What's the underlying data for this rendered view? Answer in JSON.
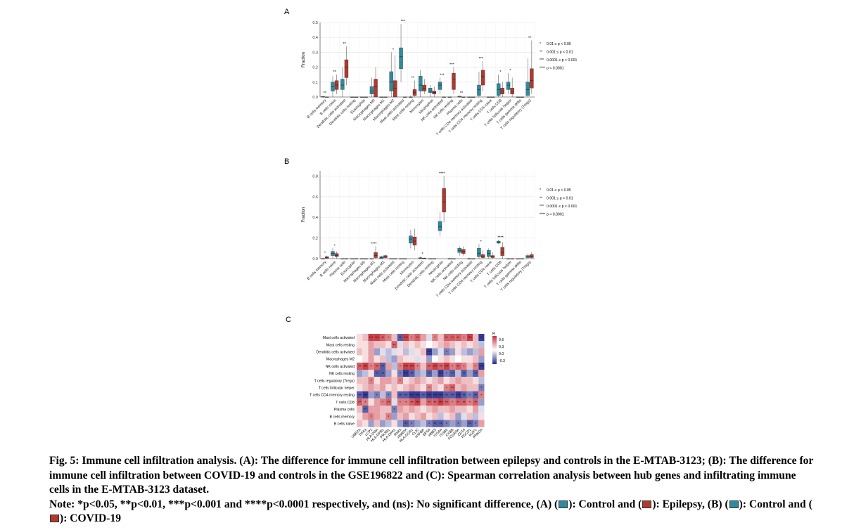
{
  "colors": {
    "control": "#2e8b9e",
    "disease": "#b03a2e",
    "heat_high": "#c8303a",
    "heat_low": "#262c8c"
  },
  "sig_legend": [
    "0.01 ≤ p < 0.05",
    "0.001 ≤ p < 0.01",
    "0.0001 ≤ p < 0.001",
    "p < 0.0001"
  ],
  "chart_data": [
    {
      "panel": "A",
      "type": "box",
      "ylabel": "Fraction",
      "ylim": [
        0,
        0.5
      ],
      "yticks": [
        "0.0",
        "0.1",
        "0.2",
        "0.3",
        "0.4",
        "0.5"
      ],
      "categories": [
        "B cells memory",
        "B cells naive",
        "Dendritic cells activated",
        "Dendritic cells resting",
        "Eosinophils",
        "Macrophages M0",
        "Macrophages M1",
        "Macrophages M2",
        "Mast cells activated",
        "Mast cells resting",
        "Monocytes",
        "Neutrophils",
        "NK cells activated",
        "NK cells resting",
        "Plasma cells",
        "T cells CD4 memory activated",
        "T cells CD4 memory resting",
        "T cells CD4 naive",
        "T cells CD8",
        "T cells follicular helper",
        "T cells gamma delta",
        "T cells regulatory (Tregs)"
      ],
      "significance": [
        "**",
        "**",
        "**",
        "",
        "",
        "",
        "",
        "*",
        "***",
        "**",
        "",
        "",
        "***",
        "***",
        "**",
        "",
        "***",
        "",
        "*",
        "*",
        "",
        "**"
      ],
      "series": [
        {
          "name": "Control",
          "boxes": [
            [
              0,
              0,
              0,
              0.003,
              0.01
            ],
            [
              0,
              0.04,
              0.07,
              0.1,
              0.14
            ],
            [
              0,
              0.05,
              0.08,
              0.12,
              0.2
            ],
            [
              0,
              0,
              0,
              0,
              0
            ],
            [
              0,
              0,
              0,
              0,
              0
            ],
            [
              0,
              0.02,
              0.04,
              0.07,
              0.13
            ],
            [
              0,
              0,
              0,
              0,
              0
            ],
            [
              0,
              0.04,
              0.1,
              0.17,
              0.3
            ],
            [
              0.1,
              0.19,
              0.27,
              0.33,
              0.49
            ],
            [
              0,
              0,
              0,
              0,
              0.01
            ],
            [
              0,
              0.04,
              0.08,
              0.14,
              0.18
            ],
            [
              0,
              0.03,
              0.04,
              0.06,
              0.08
            ],
            [
              0.02,
              0.05,
              0.08,
              0.1,
              0.13
            ],
            [
              0,
              0,
              0,
              0,
              0
            ],
            [
              0,
              0,
              0,
              0.005,
              0.01
            ],
            [
              0,
              0,
              0,
              0,
              0
            ],
            [
              0,
              0.01,
              0.05,
              0.08,
              0.17
            ],
            [
              0,
              0,
              0,
              0,
              0
            ],
            [
              0,
              0.01,
              0.05,
              0.09,
              0.15
            ],
            [
              0.02,
              0.05,
              0.08,
              0.1,
              0.16
            ],
            [
              0,
              0,
              0,
              0,
              0
            ],
            [
              0,
              0.01,
              0.05,
              0.1,
              0.26
            ]
          ]
        },
        {
          "name": "Epilepsy",
          "boxes": [
            [
              0,
              0,
              0,
              0,
              0
            ],
            [
              0.02,
              0.05,
              0.08,
              0.11,
              0.15
            ],
            [
              0.08,
              0.13,
              0.2,
              0.25,
              0.34
            ],
            [
              0,
              0,
              0,
              0,
              0
            ],
            [
              0,
              0,
              0,
              0,
              0
            ],
            [
              0,
              0,
              0.07,
              0.12,
              0.2
            ],
            [
              0,
              0,
              0,
              0,
              0
            ],
            [
              0,
              0,
              0.06,
              0.11,
              0.28
            ],
            [
              0,
              0,
              0,
              0,
              0
            ],
            [
              0,
              0.01,
              0.03,
              0.05,
              0.11
            ],
            [
              0.02,
              0.04,
              0.06,
              0.08,
              0.12
            ],
            [
              0,
              0.02,
              0.03,
              0.04,
              0.07
            ],
            [
              0,
              0,
              0,
              0,
              0
            ],
            [
              0.02,
              0.05,
              0.12,
              0.16,
              0.2
            ],
            [
              0,
              0,
              0,
              0,
              0
            ],
            [
              0,
              0,
              0,
              0,
              0
            ],
            [
              0.04,
              0.08,
              0.14,
              0.18,
              0.24
            ],
            [
              0,
              0,
              0,
              0,
              0
            ],
            [
              0,
              0.02,
              0.04,
              0.06,
              0.1
            ],
            [
              0,
              0.02,
              0.04,
              0.06,
              0.13
            ],
            [
              0,
              0,
              0,
              0,
              0
            ],
            [
              0.02,
              0.06,
              0.11,
              0.19,
              0.38
            ]
          ]
        }
      ]
    },
    {
      "panel": "B",
      "type": "box",
      "ylabel": "Fraction",
      "ylim": [
        0,
        0.85
      ],
      "yticks": [
        "0.0",
        "0.2",
        "0.4",
        "0.6",
        "0.8"
      ],
      "categories": [
        "B cells memory",
        "B cells naive",
        "Plasma cells",
        "Eosinophils",
        "Macrophages M0",
        "Macrophages M1",
        "Macrophages M2",
        "Mast cells activated",
        "Mast cells resting",
        "Monocytes",
        "Dendritic cells activated",
        "Dendritic cells resting",
        "Neutrophils",
        "NK cells activated",
        "NK cells resting",
        "T cells CD4 memory activated",
        "T cells CD4 memory resting",
        "T cells CD4 naive",
        "T cells CD8",
        "T cells follicular helper",
        "T cells gamma delta",
        "T cells regulatory (Tregs)"
      ],
      "significance": [
        "*",
        "*",
        "",
        "",
        "",
        "****",
        "",
        "",
        "",
        "",
        "*",
        "",
        "****",
        "",
        "",
        "",
        "*",
        "",
        "****",
        "",
        "",
        ""
      ],
      "series": [
        {
          "name": "Control",
          "boxes": [
            [
              0,
              0,
              0,
              0,
              0.01
            ],
            [
              0,
              0.03,
              0.05,
              0.07,
              0.1
            ],
            [
              0,
              0,
              0,
              0,
              0
            ],
            [
              0,
              0,
              0,
              0,
              0
            ],
            [
              0,
              0,
              0,
              0,
              0
            ],
            [
              0,
              0,
              0,
              0,
              0
            ],
            [
              0,
              0,
              0.01,
              0.02,
              0.03
            ],
            [
              0,
              0,
              0,
              0,
              0
            ],
            [
              0,
              0,
              0,
              0,
              0
            ],
            [
              0.1,
              0.15,
              0.19,
              0.22,
              0.28
            ],
            [
              0,
              0,
              0,
              0.01,
              0.02
            ],
            [
              0,
              0,
              0,
              0,
              0
            ],
            [
              0.22,
              0.27,
              0.31,
              0.36,
              0.45
            ],
            [
              0,
              0,
              0,
              0,
              0.01
            ],
            [
              0.03,
              0.06,
              0.08,
              0.1,
              0.12
            ],
            [
              0,
              0,
              0,
              0,
              0.01
            ],
            [
              0,
              0.02,
              0.05,
              0.1,
              0.14
            ],
            [
              0,
              0.02,
              0.05,
              0.08,
              0.1
            ],
            [
              0.14,
              0.15,
              0.16,
              0.17,
              0.18
            ],
            [
              0,
              0,
              0,
              0,
              0
            ],
            [
              0,
              0,
              0,
              0,
              0
            ],
            [
              0,
              0.01,
              0.02,
              0.03,
              0.05
            ]
          ]
        },
        {
          "name": "COVID-19",
          "boxes": [
            [
              0,
              0.005,
              0.01,
              0.02,
              0.03
            ],
            [
              0,
              0.02,
              0.03,
              0.05,
              0.07
            ],
            [
              0,
              0,
              0,
              0,
              0
            ],
            [
              0,
              0,
              0,
              0,
              0
            ],
            [
              0,
              0,
              0,
              0,
              0
            ],
            [
              0,
              0.01,
              0.03,
              0.06,
              0.12
            ],
            [
              0,
              0.01,
              0.02,
              0.03,
              0.04
            ],
            [
              0,
              0,
              0,
              0,
              0
            ],
            [
              0,
              0,
              0,
              0,
              0
            ],
            [
              0.08,
              0.13,
              0.17,
              0.21,
              0.29
            ],
            [
              0,
              0,
              0,
              0.005,
              0.01
            ],
            [
              0,
              0,
              0,
              0,
              0
            ],
            [
              0.35,
              0.45,
              0.55,
              0.68,
              0.8
            ],
            [
              0,
              0,
              0,
              0,
              0
            ],
            [
              0.03,
              0.05,
              0.07,
              0.09,
              0.12
            ],
            [
              0,
              0,
              0,
              0,
              0
            ],
            [
              0,
              0.01,
              0.02,
              0.04,
              0.08
            ],
            [
              0,
              0.01,
              0.02,
              0.03,
              0.06
            ],
            [
              0,
              0.03,
              0.06,
              0.11,
              0.16
            ],
            [
              0,
              0,
              0,
              0,
              0
            ],
            [
              0,
              0,
              0,
              0,
              0
            ],
            [
              0,
              0.01,
              0.02,
              0.04,
              0.06
            ]
          ]
        }
      ]
    },
    {
      "panel": "C",
      "type": "heatmap",
      "legend_title": "R",
      "scale_ticks": [
        "0.6",
        "0.3",
        "0.0",
        "-0.3"
      ],
      "rows": [
        "Mast cells activated",
        "Mast cells resting",
        "Dendritic cells activated",
        "Macrophages M2",
        "NK cells activated",
        "NK cells resting",
        "T cells regulatory (Tregs)",
        "T cells follicular helper",
        "T cells CD4 memory resting",
        "T cells CD8",
        "Plasma cells",
        "B cells memory",
        "B cells naive"
      ],
      "columns": [
        "UBE2A",
        "TIFA3",
        "LCP2",
        "HLA-DRA",
        "HLA-DPB1",
        "PIK3R1",
        "HLA-DPA1",
        "RIMS",
        "HNRPK",
        "HLA-DQA1",
        "CLIC",
        "HSPBP",
        "BPS4",
        "HBBS",
        "ITGA4",
        "ITGB2",
        "CYBB",
        "FCGR3A",
        "CD14",
        "PDCD1",
        "IKZF1",
        "PRKCA"
      ],
      "values": [
        [
          0.1,
          0.2,
          0.6,
          0.6,
          0.5,
          0.4,
          0.2,
          -0.5,
          0.6,
          0.4,
          0.5,
          0.3,
          -0.1,
          0.4,
          0.2,
          0.5,
          0.5,
          0.5,
          0.4,
          0.6,
          0.2,
          -0.6
        ],
        [
          0.1,
          0.1,
          0.3,
          0.2,
          0.2,
          0.1,
          0.5,
          -0.1,
          0.2,
          0.1,
          0.2,
          0.1,
          0.0,
          0.1,
          0.2,
          0.3,
          0.2,
          0.1,
          0.2,
          0.1,
          0.2,
          -0.2
        ],
        [
          0.2,
          0.1,
          0.3,
          -0.3,
          -0.1,
          -0.2,
          -0.1,
          0.1,
          -0.2,
          -0.1,
          0.1,
          0.2,
          -0.6,
          -0.3,
          -0.1,
          -0.4,
          -0.3,
          0.1,
          -0.2,
          -0.3,
          -0.2,
          0.3
        ],
        [
          0.0,
          0.1,
          0.3,
          0.1,
          0.2,
          -0.2,
          -0.3,
          0.2,
          0.1,
          0.1,
          -0.1,
          0.1,
          -0.3,
          0.0,
          0.1,
          0.2,
          0.1,
          0.0,
          0.1,
          0.1,
          0.2,
          -0.3
        ],
        [
          0.5,
          0.6,
          0.4,
          0.5,
          -0.5,
          0.3,
          -0.2,
          0.4,
          0.6,
          0.6,
          0.4,
          0.2,
          0.5,
          0.6,
          0.5,
          0.6,
          0.4,
          0.5,
          0.4,
          0.2,
          0.4,
          -0.6
        ],
        [
          -0.3,
          -0.2,
          0.1,
          -0.5,
          -0.5,
          -0.3,
          0.1,
          -0.4,
          -0.6,
          -0.5,
          -0.3,
          -0.2,
          -0.5,
          -0.3,
          -0.6,
          -0.4,
          -0.5,
          -0.2,
          -0.5,
          -0.3,
          -0.5,
          0.3
        ],
        [
          0.2,
          0.2,
          0.4,
          0.1,
          0.3,
          0.3,
          0.2,
          0.4,
          0.1,
          0.2,
          0.3,
          0.2,
          0.1,
          0.2,
          0.3,
          0.1,
          0.2,
          0.3,
          0.2,
          0.2,
          0.1,
          -0.2
        ],
        [
          0.1,
          0.2,
          0.3,
          0.2,
          0.3,
          0.1,
          0.2,
          0.1,
          0.2,
          0.3,
          0.2,
          0.1,
          0.4,
          0.2,
          0.1,
          0.4,
          0.5,
          0.2,
          0.3,
          0.2,
          0.2,
          -0.4
        ],
        [
          -0.5,
          -0.6,
          -0.3,
          -0.4,
          -0.2,
          -0.4,
          0.2,
          -0.5,
          -0.5,
          -0.6,
          -0.6,
          -0.5,
          -0.6,
          -0.6,
          -0.6,
          -0.5,
          -0.5,
          -0.6,
          -0.5,
          -0.4,
          -0.5,
          0.4
        ],
        [
          0.5,
          0.4,
          0.1,
          0.3,
          0.4,
          0.5,
          -0.1,
          0.4,
          0.4,
          0.5,
          0.6,
          0.3,
          0.5,
          0.5,
          0.6,
          0.5,
          0.4,
          0.5,
          0.5,
          0.4,
          0.5,
          -0.3
        ],
        [
          0.2,
          -0.5,
          0.3,
          0.3,
          0.2,
          0.2,
          -0.4,
          0.3,
          0.2,
          0.3,
          0.2,
          0.1,
          0.2,
          0.3,
          0.2,
          0.2,
          0.3,
          0.2,
          0.2,
          0.1,
          0.3,
          -0.1
        ],
        [
          0.1,
          0.3,
          0.4,
          0.3,
          0.2,
          0.4,
          -0.3,
          0.2,
          0.3,
          0.1,
          0.2,
          0.3,
          0.1,
          0.2,
          -0.2,
          0.1,
          0.2,
          -0.3,
          -0.1,
          0.2,
          -0.2,
          0.1
        ],
        [
          0.2,
          0.1,
          -0.3,
          0.2,
          -0.3,
          -0.2,
          0.1,
          -0.3,
          -0.5,
          -0.4,
          -0.3,
          -0.2,
          -0.4,
          -0.5,
          -0.5,
          -0.4,
          -0.3,
          -0.4,
          -0.3,
          -0.5,
          -0.4,
          0.3
        ]
      ]
    }
  ],
  "caption": {
    "text": "Fig. 5: Immune cell infiltration analysis. (A): The difference for immune cell infiltration between epilepsy and controls in the E-MTAB-3123; (B): The difference for immune cell infiltration between COVID-19 and controls in the GSE196822 and (C): Spearman correlation analysis between hub genes and infiltrating immune cells in the E-MTAB-3123 dataset.",
    "note_start": "Note: *p<0.05, **p<0.01, ***p<0.001 and ****p<0.0001 respectively, and (ns): No significant difference, (A) (",
    "note_control_a": "): Control and (",
    "note_epilepsy": "): Epilepsy, (B) (",
    "note_control_b": "): Control and (",
    "note_covid": "): COVID-19"
  }
}
